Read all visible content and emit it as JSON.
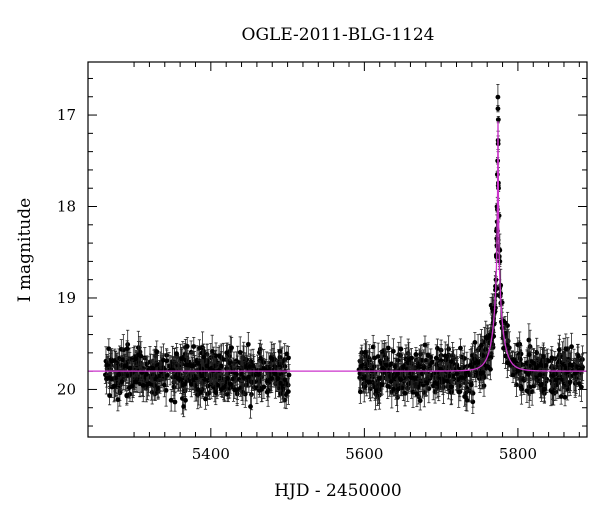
{
  "chart_data": {
    "type": "scatter",
    "title": "OGLE-2011-BLG-1124",
    "xlabel": "HJD - 2450000",
    "ylabel": "I magnitude",
    "xlim": [
      5240,
      5890
    ],
    "ylim": [
      20.52,
      16.42
    ],
    "y_inverted": true,
    "x_ticks": [
      5400,
      5600,
      5800
    ],
    "y_ticks": [
      17,
      18,
      19,
      20
    ],
    "colors": {
      "points": "#000000",
      "model": "#cc33cc",
      "axes": "#000000"
    },
    "series": [
      {
        "kind": "observations",
        "with_error_bars": true,
        "segments": [
          {
            "x_range": [
              5262,
              5502
            ],
            "baseline_mag": 19.82,
            "scatter_mag": 0.2,
            "typical_error": 0.12
          },
          {
            "x_range": [
              5593,
              5885
            ],
            "baseline_mag": 19.82,
            "scatter_mag": 0.2,
            "typical_error": 0.12
          }
        ],
        "peak_points": [
          {
            "x": 5774,
            "y": 16.93
          },
          {
            "x": 5774.5,
            "y": 17.05
          },
          {
            "x": 5773.6,
            "y": 17.5
          },
          {
            "x": 5773.2,
            "y": 17.65
          },
          {
            "x": 5774.8,
            "y": 17.8
          },
          {
            "x": 5772.8,
            "y": 18.0
          },
          {
            "x": 5775.5,
            "y": 18.1
          },
          {
            "x": 5772.4,
            "y": 18.35
          },
          {
            "x": 5772.0,
            "y": 18.55
          },
          {
            "x": 5776.5,
            "y": 18.6
          },
          {
            "x": 5771.4,
            "y": 18.8
          },
          {
            "x": 5777.5,
            "y": 18.95
          },
          {
            "x": 5779.5,
            "y": 19.05
          },
          {
            "x": 5770.0,
            "y": 19.15
          },
          {
            "x": 5781.0,
            "y": 19.25
          }
        ]
      },
      {
        "kind": "model",
        "baseline": 19.8,
        "peak_mag": 16.98,
        "t0": 5774,
        "tE": 13,
        "u0": 0.009
      }
    ]
  }
}
